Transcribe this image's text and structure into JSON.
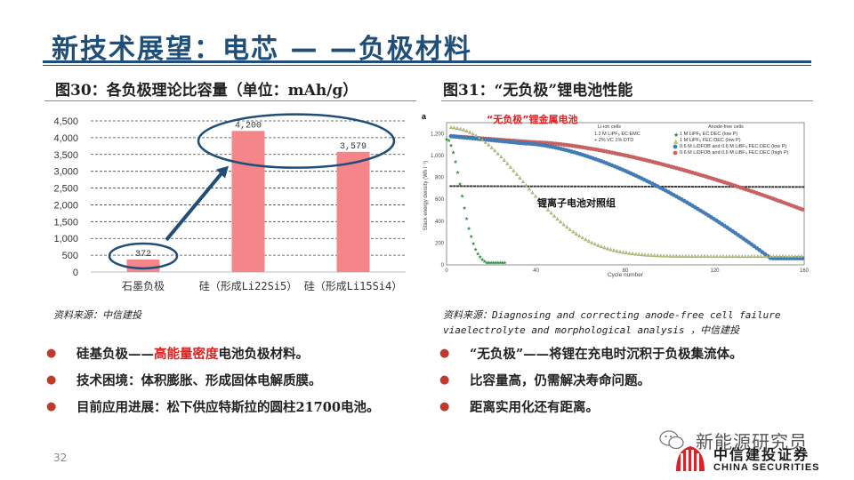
{
  "slide_title": "新技术展望：电芯 — —负极材料",
  "page_number": "32",
  "left": {
    "caption": "图30：各负极理论比容量（单位：mAh/g）",
    "source": "资料来源：中信建投",
    "bullets": [
      {
        "pre": "硅基负极——",
        "highlight": "高能量密度",
        "post": "电池负极材料。"
      },
      {
        "pre": "技术困境：体积膨胀、形成固体电解质膜。",
        "highlight": "",
        "post": ""
      },
      {
        "pre": "目前应用进展：松下供应特斯拉的圆柱21700电池。",
        "highlight": "",
        "post": ""
      }
    ]
  },
  "right": {
    "caption": "图31：“无负极”锂电池性能",
    "source": "资料来源：Diagnosing and correcting anode-free cell failure viaelectrolyte and morphological analysis ，中信建投",
    "bullets": [
      {
        "pre": "“无负极”——将锂在充电时沉积于负极集流体。",
        "highlight": "",
        "post": ""
      },
      {
        "pre": "比容量高，仍需解决寿命问题。",
        "highlight": "",
        "post": ""
      },
      {
        "pre": "距离实用化还有距离。",
        "highlight": "",
        "post": ""
      }
    ],
    "figure": {
      "panel_label": "a",
      "annotation_red": "“无负极”锂金属电池",
      "annotation_black": "锂离子电池对照组",
      "ylabel": "Stack energy density (Wh l⁻¹)",
      "xlabel": "Cycle number",
      "xticks": [
        "0",
        "40",
        "80",
        "120",
        "160"
      ],
      "yticks": [
        "1,200",
        "1,000",
        "800",
        "600",
        "400",
        "200",
        "0"
      ],
      "legend_left_title": "Li-ion cells",
      "legend_left": [
        "1.2 M LiPF₆ EC:EMC",
        "+ 2% VC 1% DTD"
      ],
      "legend_right_title": "Anode-free cells",
      "legend_right": [
        "1 M LiPF₆ EC:DEC (low P)",
        "1 M LiPF₆ FEC:DEC (low P)",
        "0.6 M LiDFOB and 0.6 M LiBF₄ FEC:DEC (low P)",
        "0.6 M LiDFOB and 0.6 M LiBF₄ FEC:DEC (high P)"
      ],
      "colors": {
        "liion": "#333333",
        "green_star": "#2e8b3a",
        "yellow_green": "#b8c860",
        "blue": "#3d7fc1",
        "red": "#d66060"
      }
    }
  },
  "chart_data": {
    "type": "bar",
    "categories": [
      "石墨负极",
      "硅（形成Li22Si5）",
      "硅（形成Li15Si4）"
    ],
    "values": [
      372,
      4200,
      3579
    ],
    "data_labels": [
      "372",
      "4,200",
      "3,579"
    ],
    "ylim": [
      0,
      4500
    ],
    "yticks": [
      0,
      500,
      1000,
      1500,
      2000,
      2500,
      3000,
      3500,
      4000,
      4500
    ],
    "ytick_labels": [
      "0",
      "500",
      "1,000",
      "1,500",
      "2,000",
      "2,500",
      "3,000",
      "3,500",
      "4,000",
      "4,500"
    ],
    "title": "",
    "xlabel": "",
    "ylabel": "",
    "grid": true,
    "bar_color": "#f4868a"
  },
  "logos": {
    "wechat_name": "新能源研究员",
    "company_cn": "中信建投证券",
    "company_en": "CHINA SECURITIES"
  }
}
